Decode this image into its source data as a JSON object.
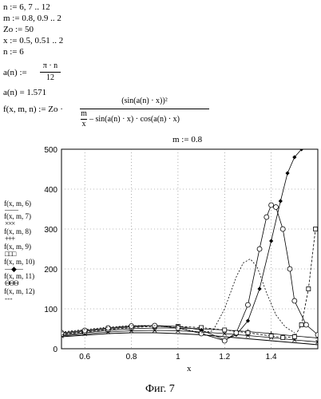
{
  "worksheet": {
    "line1": "n := 6, 7 .. 12",
    "line2": "m := 0.8, 0.9 .. 2",
    "line3": "Zo := 50",
    "line4": "x := 0.5, 0.51 .. 2",
    "line5": "n := 6",
    "a_def_lhs": "a(n) :=",
    "a_def_num": "π · n",
    "a_def_den": "12",
    "a_result": "a(n) = 1.571",
    "f_def_lhs": "f(x, m, n) := Zo ·",
    "f_def_num": "(sin(a(n) · x))²",
    "f_def_den_m": "m",
    "f_def_den_x": "x",
    "f_def_den_rest": "– sin(a(n) · x) · cos(a(n) · x)",
    "m_value": "m := 0.8"
  },
  "legend": [
    {
      "label": "f(x, m, 6)",
      "symbol": "——"
    },
    {
      "label": "f(x, m, 7)",
      "symbol": "×××"
    },
    {
      "label": "f(x, m, 8)",
      "symbol": "+++"
    },
    {
      "label": "f(x, m, 9)",
      "symbol": "□□□"
    },
    {
      "label": "f(x, m, 10)",
      "symbol": "—◆—"
    },
    {
      "label": "f(x, m, 11)",
      "symbol": "ΘΘΘ"
    },
    {
      "label": "f(x, m, 12)",
      "symbol": "- - -"
    }
  ],
  "caption": "Фиг. 7",
  "chart_data": {
    "type": "line",
    "xlabel": "x",
    "xlim": [
      0.5,
      1.6
    ],
    "ylim": [
      0,
      500
    ],
    "x_ticks": [
      "0.6",
      "0.8",
      "1",
      "1.2",
      "1.4"
    ],
    "y_ticks": [
      "0",
      "100",
      "200",
      "300",
      "400",
      "500"
    ],
    "grid": "dotted",
    "series": [
      {
        "name": "f(x, m, 6)",
        "style": "solid",
        "x": [
          0.5,
          0.6,
          0.7,
          0.8,
          0.9,
          1.0,
          1.1,
          1.2,
          1.3,
          1.4,
          1.5,
          1.6
        ],
        "y": [
          30,
          34,
          38,
          40,
          40,
          38,
          35,
          30,
          25,
          20,
          15,
          10
        ]
      },
      {
        "name": "f(x, m, 7)",
        "style": "cross",
        "x": [
          0.5,
          0.6,
          0.7,
          0.8,
          0.9,
          1.0,
          1.1,
          1.2,
          1.3,
          1.4,
          1.5,
          1.6
        ],
        "y": [
          32,
          37,
          42,
          45,
          46,
          45,
          42,
          38,
          33,
          28,
          22,
          17
        ]
      },
      {
        "name": "f(x, m, 8)",
        "style": "plus",
        "x": [
          0.5,
          0.6,
          0.7,
          0.8,
          0.9,
          1.0,
          1.1,
          1.2,
          1.3,
          1.4,
          1.5,
          1.6
        ],
        "y": [
          34,
          40,
          46,
          50,
          52,
          52,
          50,
          47,
          43,
          38,
          32,
          27
        ]
      },
      {
        "name": "f(x, m, 9)",
        "style": "square",
        "x": [
          0.5,
          0.6,
          0.7,
          0.8,
          0.9,
          1.0,
          1.1,
          1.2,
          1.3,
          1.4,
          1.45,
          1.5,
          1.53,
          1.56,
          1.59
        ],
        "y": [
          36,
          42,
          48,
          53,
          56,
          56,
          53,
          47,
          40,
          32,
          28,
          30,
          60,
          150,
          300
        ]
      },
      {
        "name": "f(x, m, 10)",
        "style": "diamond",
        "x": [
          0.5,
          0.6,
          0.7,
          0.8,
          0.9,
          1.0,
          1.1,
          1.2,
          1.25,
          1.3,
          1.35,
          1.4,
          1.44,
          1.47,
          1.5,
          1.53
        ],
        "y": [
          38,
          44,
          50,
          55,
          58,
          56,
          47,
          22,
          35,
          70,
          150,
          270,
          370,
          440,
          480,
          500
        ]
      },
      {
        "name": "f(x, m, 11)",
        "style": "circle",
        "x": [
          0.5,
          0.6,
          0.7,
          0.8,
          0.9,
          1.0,
          1.1,
          1.2,
          1.25,
          1.3,
          1.35,
          1.38,
          1.4,
          1.42,
          1.45,
          1.48,
          1.5,
          1.55,
          1.6
        ],
        "y": [
          40,
          46,
          52,
          57,
          58,
          52,
          38,
          20,
          40,
          110,
          250,
          330,
          360,
          355,
          300,
          200,
          120,
          60,
          35
        ]
      },
      {
        "name": "f(x, m, 12)",
        "style": "dotted",
        "x": [
          0.5,
          0.6,
          0.7,
          0.8,
          0.9,
          1.0,
          1.1,
          1.15,
          1.2,
          1.25,
          1.28,
          1.31,
          1.34,
          1.38,
          1.42,
          1.46,
          1.5
        ],
        "y": [
          42,
          48,
          54,
          58,
          58,
          52,
          40,
          45,
          100,
          180,
          215,
          225,
          205,
          140,
          85,
          55,
          40
        ]
      }
    ]
  }
}
